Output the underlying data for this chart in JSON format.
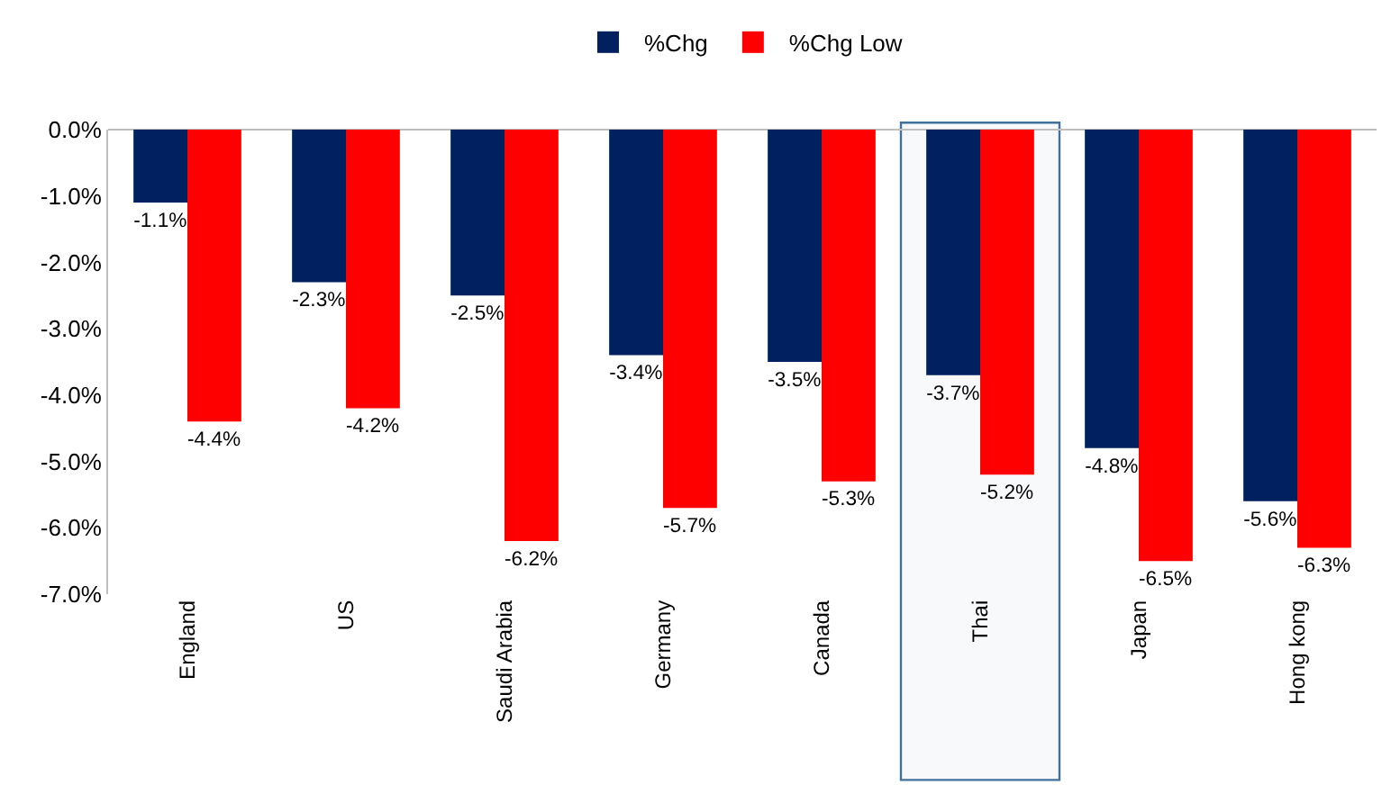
{
  "chart_data": {
    "type": "bar",
    "categories": [
      "England",
      "US",
      "Saudi Arabia",
      "Germany",
      "Canada",
      "Thai",
      "Japan",
      "Hong kong"
    ],
    "series": [
      {
        "name": "%Chg",
        "color": "#002060",
        "values": [
          -1.1,
          -2.3,
          -2.5,
          -3.4,
          -3.5,
          -3.7,
          -4.8,
          -5.6
        ],
        "value_labels": [
          "-1.1%",
          "-2.3%",
          "-2.5%",
          "-3.4%",
          "-3.5%",
          "-3.7%",
          "-4.8%",
          "-5.6%"
        ]
      },
      {
        "name": "%Chg Low",
        "color": "#ff0000",
        "values": [
          -4.4,
          -4.2,
          -6.2,
          -5.7,
          -5.3,
          -5.2,
          -6.5,
          -6.3
        ],
        "value_labels": [
          "-4.4%",
          "-4.2%",
          "-6.2%",
          "-5.7%",
          "-5.3%",
          "-5.2%",
          "-6.5%",
          "-6.3%"
        ]
      }
    ],
    "ylim": [
      -7,
      0
    ],
    "yticks": [
      {
        "value": 0,
        "label": "0.0%"
      },
      {
        "value": -1,
        "label": "-1.0%"
      },
      {
        "value": -2,
        "label": "-2.0%"
      },
      {
        "value": -3,
        "label": "-3.0%"
      },
      {
        "value": -4,
        "label": "-4.0%"
      },
      {
        "value": -5,
        "label": "-5.0%"
      },
      {
        "value": -6,
        "label": "-6.0%"
      },
      {
        "value": -7,
        "label": "-7.0%"
      }
    ],
    "bands": [
      {
        "axis": "x",
        "from": "Thai",
        "to": "Thai",
        "color": "#41719c"
      }
    ],
    "grid": false,
    "legend": "top"
  }
}
